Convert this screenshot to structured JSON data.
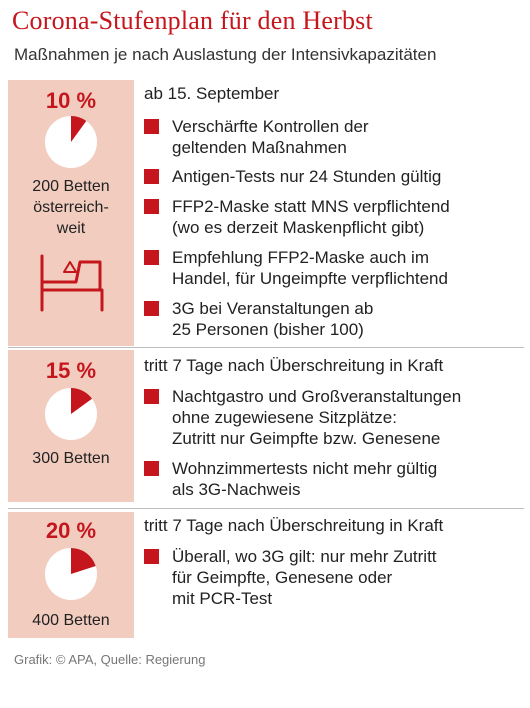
{
  "header": {
    "title": "Corona-Stufenplan für den Herbst",
    "subtitle": "Maßnahmen je nach Auslastung der Intensivkapazitäten"
  },
  "colors": {
    "accent": "#c4161c",
    "panel": "#f2cdbf"
  },
  "stages": [
    {
      "percent_label": "10 %",
      "pie_fraction": 0.1,
      "beds_label": "200 Betten\nösterreich-\nweit",
      "heading": "ab 15. September",
      "items": [
        "Verschärfte Kontrollen der\ngeltenden Maßnahmen",
        "Antigen-Tests nur 24 Stunden gültig",
        "FFP2-Maske statt MNS verpflichtend\n(wo es derzeit Maskenpflicht gibt)",
        "Empfehlung FFP2-Maske auch im\nHandel, für Ungeimpfte verpflichtend",
        "3G bei Veranstaltungen ab\n25 Personen (bisher 100)"
      ]
    },
    {
      "percent_label": "15 %",
      "pie_fraction": 0.15,
      "beds_label": "300 Betten",
      "heading": "tritt 7 Tage nach Überschreitung in Kraft",
      "items": [
        "Nachtgastro und Großveranstaltungen\nohne zugewiesene Sitzplätze:\nZutritt nur Geimpfte bzw. Genesene",
        "Wohnzimmertests nicht mehr gültig\nals 3G-Nachweis"
      ]
    },
    {
      "percent_label": "20 %",
      "pie_fraction": 0.2,
      "beds_label": "400 Betten",
      "heading": "tritt 7 Tage nach Überschreitung in Kraft",
      "items": [
        "Überall, wo 3G gilt: nur mehr Zutritt\nfür Geimpfte, Genesene oder\nmit PCR-Test"
      ]
    }
  ],
  "footer": {
    "credit": "Grafik: © APA, Quelle: Regierung"
  }
}
